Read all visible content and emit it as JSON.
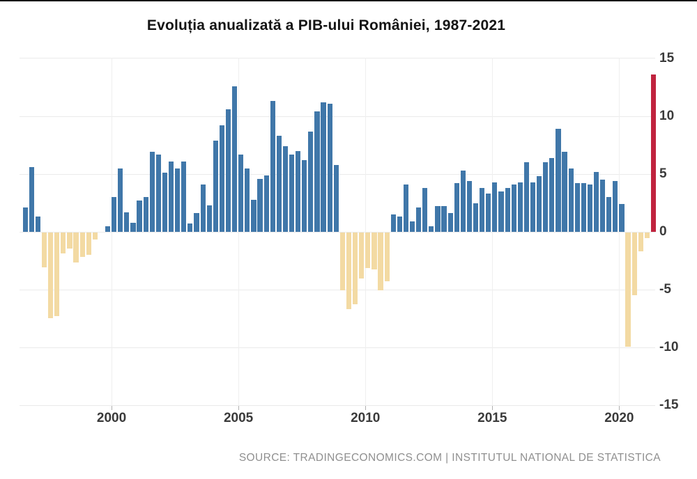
{
  "header": {
    "title": "Evoluția anualizată a PIB-ului României, 1987-2021"
  },
  "footer": {
    "source": "SOURCE: TRADINGECONOMICS.COM | INSTITUTUL NATIONAL DE STATISTICA"
  },
  "chart_data": {
    "type": "bar",
    "title": "Evoluția anualizată a PIB-ului României, 1987-2021",
    "xlabel": "",
    "ylabel": "",
    "unit": "%",
    "ylim": [
      -15,
      15
    ],
    "grid": true,
    "legend_position": "none",
    "y_ticks": [
      15,
      10,
      5,
      0,
      -5,
      -10,
      -15
    ],
    "x_ticks": [
      2000,
      2005,
      2010,
      2015,
      2020
    ],
    "quarters": [
      "1996-Q3",
      "1996-Q4",
      "1997-Q1",
      "1997-Q2",
      "1997-Q3",
      "1997-Q4",
      "1998-Q1",
      "1998-Q2",
      "1998-Q3",
      "1998-Q4",
      "1999-Q1",
      "1999-Q2",
      "1999-Q3",
      "1999-Q4",
      "2000-Q1",
      "2000-Q2",
      "2000-Q3",
      "2000-Q4",
      "2001-Q1",
      "2001-Q2",
      "2001-Q3",
      "2001-Q4",
      "2002-Q1",
      "2002-Q2",
      "2002-Q3",
      "2002-Q4",
      "2003-Q1",
      "2003-Q2",
      "2003-Q3",
      "2003-Q4",
      "2004-Q1",
      "2004-Q2",
      "2004-Q3",
      "2004-Q4",
      "2005-Q1",
      "2005-Q2",
      "2005-Q3",
      "2005-Q4",
      "2006-Q1",
      "2006-Q2",
      "2006-Q3",
      "2006-Q4",
      "2007-Q1",
      "2007-Q2",
      "2007-Q3",
      "2007-Q4",
      "2008-Q1",
      "2008-Q2",
      "2008-Q3",
      "2008-Q4",
      "2009-Q1",
      "2009-Q2",
      "2009-Q3",
      "2009-Q4",
      "2010-Q1",
      "2010-Q2",
      "2010-Q3",
      "2010-Q4",
      "2011-Q1",
      "2011-Q2",
      "2011-Q3",
      "2011-Q4",
      "2012-Q1",
      "2012-Q2",
      "2012-Q3",
      "2012-Q4",
      "2013-Q1",
      "2013-Q2",
      "2013-Q3",
      "2013-Q4",
      "2014-Q1",
      "2014-Q2",
      "2014-Q3",
      "2014-Q4",
      "2015-Q1",
      "2015-Q2",
      "2015-Q3",
      "2015-Q4",
      "2016-Q1",
      "2016-Q2",
      "2016-Q3",
      "2016-Q4",
      "2017-Q1",
      "2017-Q2",
      "2017-Q3",
      "2017-Q4",
      "2018-Q1",
      "2018-Q2",
      "2018-Q3",
      "2018-Q4",
      "2019-Q1",
      "2019-Q2",
      "2019-Q3",
      "2019-Q4",
      "2020-Q1",
      "2020-Q2",
      "2020-Q3",
      "2020-Q4",
      "2021-Q1",
      "2021-Q2"
    ],
    "values": [
      2.1,
      5.6,
      1.3,
      -3.0,
      -7.4,
      -7.2,
      -1.8,
      -1.4,
      -2.6,
      -2.1,
      -1.9,
      -0.6,
      0,
      0.5,
      3.0,
      5.5,
      1.7,
      0.8,
      2.7,
      3.0,
      6.9,
      6.7,
      5.1,
      6.1,
      5.5,
      6.1,
      0.7,
      1.6,
      4.1,
      2.3,
      7.9,
      9.2,
      10.6,
      12.6,
      6.7,
      5.5,
      2.8,
      4.6,
      4.9,
      11.3,
      8.3,
      7.4,
      6.7,
      7.0,
      6.2,
      8.7,
      10.4,
      11.2,
      11.1,
      5.8,
      -5.0,
      -6.6,
      -6.2,
      -4.0,
      -3.1,
      -3.2,
      -5.0,
      -4.2,
      1.5,
      1.3,
      4.1,
      0.9,
      2.1,
      3.8,
      0.5,
      2.2,
      2.2,
      1.6,
      4.2,
      5.3,
      4.4,
      2.5,
      3.8,
      3.3,
      4.3,
      3.5,
      3.8,
      4.1,
      4.3,
      6.0,
      4.3,
      4.8,
      6.0,
      6.4,
      8.9,
      6.9,
      5.5,
      4.2,
      4.2,
      4.1,
      5.2,
      4.5,
      3.0,
      4.4,
      2.4,
      -9.9,
      -5.4,
      -1.6,
      -0.5,
      13.6
    ],
    "highlight_index": 99,
    "colors": {
      "positive": "#4077A9",
      "negative": "#F3DAA3",
      "highlight": "#C0233E",
      "gridline": "#eaeaea",
      "axis_text": "#3a3a3a",
      "source_text": "#8f8f8f"
    }
  }
}
